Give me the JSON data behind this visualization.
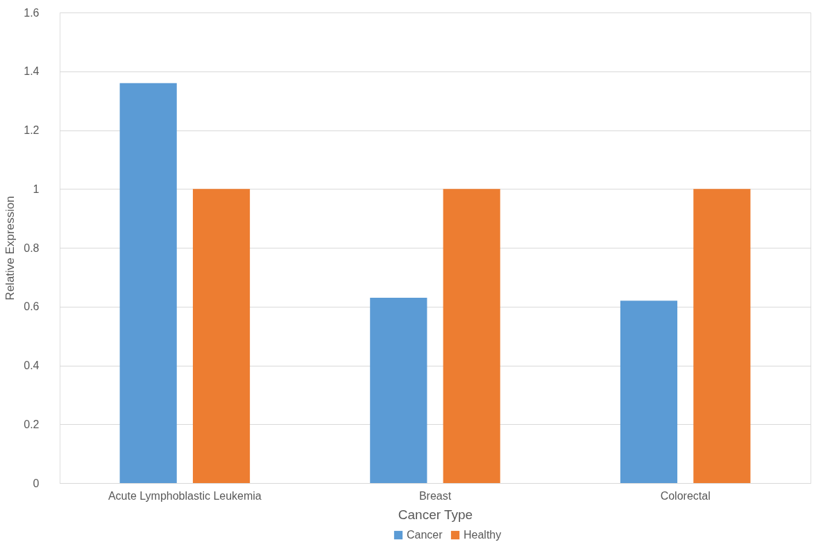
{
  "chart_data": {
    "type": "bar",
    "xlabel": "Cancer Type",
    "ylabel": "Relative Expression",
    "categories": [
      "Acute Lymphoblastic Leukemia",
      "Breast",
      "Colorectal"
    ],
    "series": [
      {
        "name": "Cancer",
        "color": "#5b9bd5",
        "values": [
          1.36,
          0.63,
          0.62
        ]
      },
      {
        "name": "Healthy",
        "color": "#ed7d31",
        "values": [
          1,
          1,
          1
        ]
      }
    ],
    "ylim": [
      0,
      1.6
    ],
    "yticks": [
      0,
      0.2,
      0.4,
      0.6,
      0.8,
      1,
      1.2,
      1.4,
      1.6
    ],
    "grid": "y",
    "legend": "bottom"
  }
}
